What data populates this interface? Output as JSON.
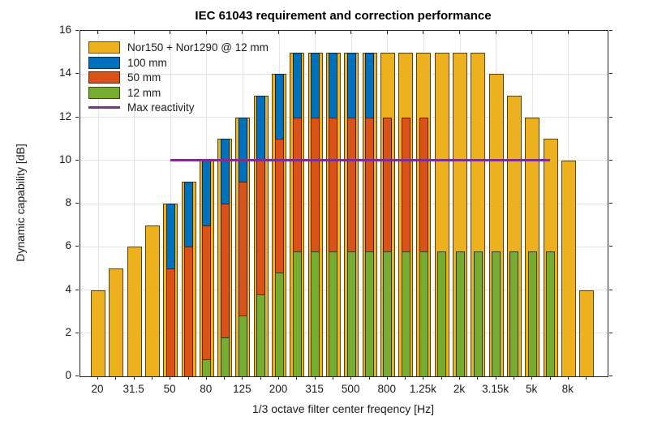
{
  "chart_data": {
    "type": "bar",
    "title": "IEC 61043 requirement and correction performance",
    "xlabel": "1/3 octave filter center freqency [Hz]",
    "ylabel": "Dynamic capability [dB]",
    "ylim": [
      0,
      16
    ],
    "yticks": [
      0,
      2,
      4,
      6,
      8,
      10,
      12,
      14,
      16
    ],
    "grid": true,
    "legend_position": "top-left",
    "xtick_label_every": 2,
    "categories": [
      "20",
      "25",
      "31.5",
      "40",
      "50",
      "63",
      "80",
      "100",
      "125",
      "160",
      "200",
      "250",
      "315",
      "400",
      "500",
      "630",
      "800",
      "1k",
      "1.25k",
      "1.6k",
      "2k",
      "2.5k",
      "3.15k",
      "4k",
      "5k",
      "6.3k",
      "8k",
      "10k"
    ],
    "series": [
      {
        "name": "Nor150 + Nor1290 @ 12 mm",
        "style": "bar",
        "color": "#EDB120",
        "values": [
          4,
          5,
          6,
          7,
          8,
          9,
          10,
          11,
          12,
          13,
          14,
          15,
          15,
          15,
          15,
          15,
          15,
          15,
          15,
          15,
          15,
          15,
          14,
          13,
          12,
          11,
          10,
          4
        ]
      },
      {
        "name": "100 mm",
        "style": "bar",
        "color": "#0072BD",
        "values": [
          0,
          0,
          0,
          0,
          8,
          9,
          10,
          11,
          12,
          13,
          14,
          15,
          15,
          15,
          15,
          15,
          0,
          0,
          0,
          0,
          0,
          0,
          0,
          0,
          0,
          0,
          0,
          0
        ]
      },
      {
        "name": "50 mm",
        "style": "bar",
        "color": "#D95319",
        "values": [
          0,
          0,
          0,
          0,
          5,
          6,
          7,
          8,
          9,
          10,
          11,
          12,
          12,
          12,
          12,
          12,
          12,
          12,
          12,
          0,
          0,
          0,
          0,
          0,
          0,
          0,
          0,
          0
        ]
      },
      {
        "name": "12 mm",
        "style": "bar",
        "color": "#77AC30",
        "values": [
          0,
          0,
          0,
          0,
          0,
          0,
          0.8,
          1.8,
          2.8,
          3.8,
          4.8,
          5.8,
          5.8,
          5.8,
          5.8,
          5.8,
          5.8,
          5.8,
          5.8,
          5.8,
          5.8,
          5.8,
          5.8,
          5.8,
          5.8,
          5.8,
          0,
          0
        ]
      },
      {
        "name": "Max reactivity",
        "style": "line",
        "color": "#7E2F8E",
        "y": 10,
        "x_from": "50",
        "x_to": "6.3k"
      }
    ]
  }
}
